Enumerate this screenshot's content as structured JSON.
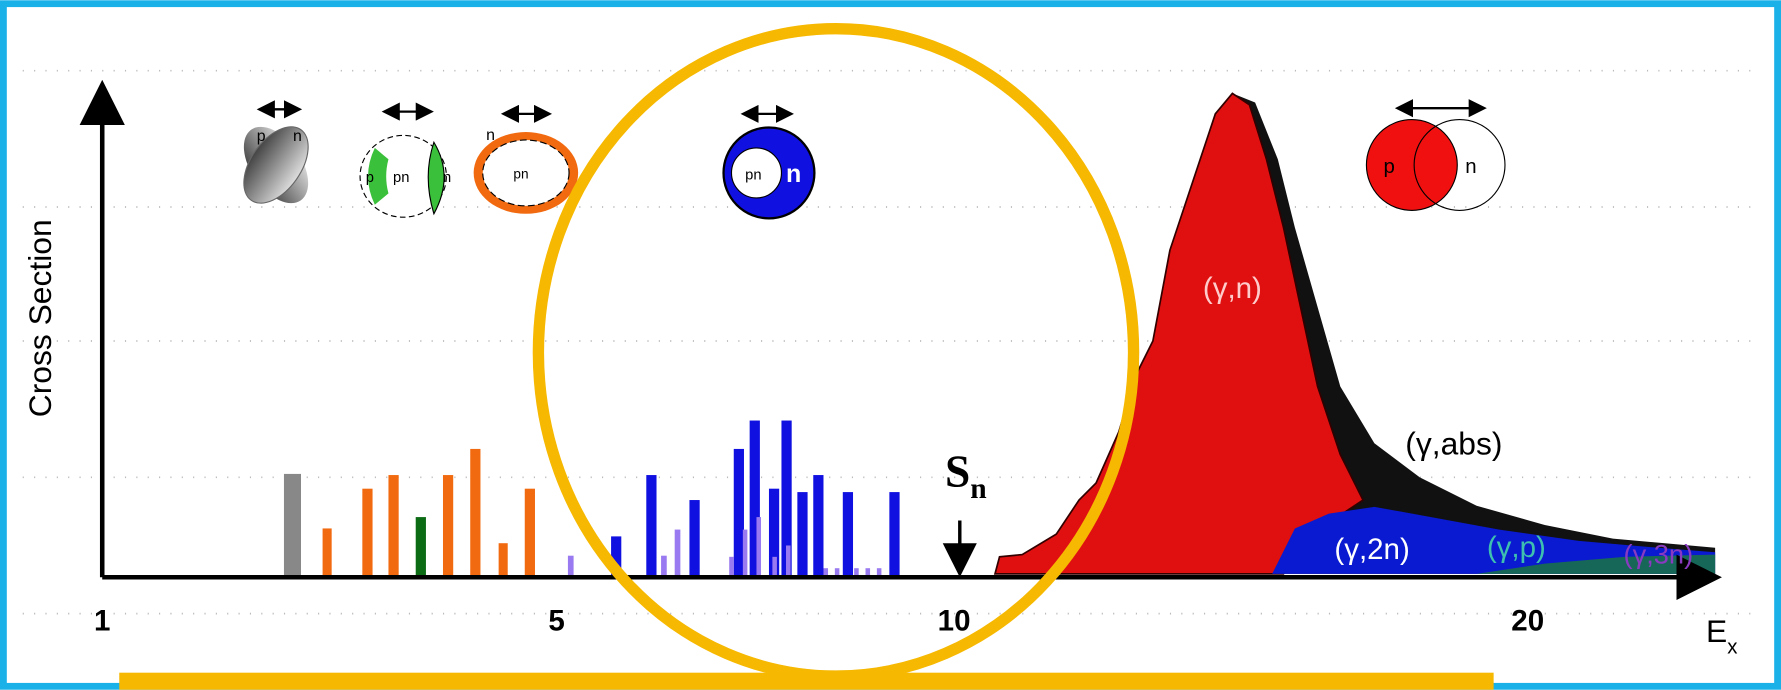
{
  "axes": {
    "y_label": "Cross Section",
    "x_label": {
      "main": "E",
      "sub": "x"
    },
    "x_ticks": [
      "1",
      "5",
      "10",
      "20"
    ]
  },
  "threshold": {
    "main": "S",
    "sub": "n"
  },
  "reactions": [
    "(γ,n)",
    "(γ,abs)",
    "(γ,2n)",
    "(γ,p)",
    "(γ,3n)"
  ],
  "icons": {
    "scissors": [
      "p",
      "n"
    ],
    "pygmy_green": [
      "p",
      "pn",
      "n"
    ],
    "pygmy_orange": [
      "n",
      "pn"
    ],
    "skin": [
      "pn",
      "n"
    ],
    "giant": [
      "p",
      "n"
    ]
  }
}
